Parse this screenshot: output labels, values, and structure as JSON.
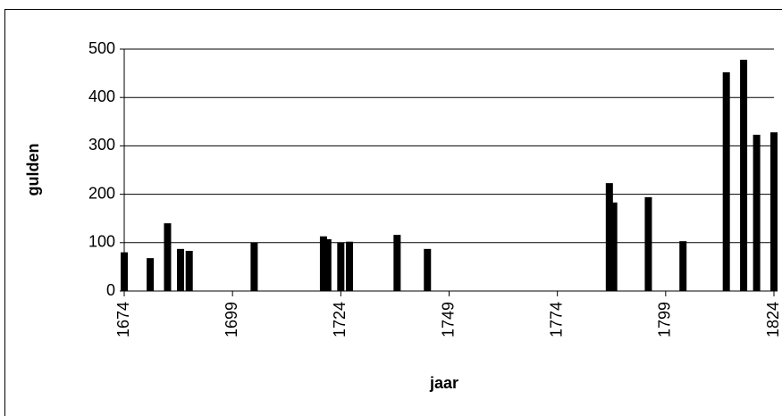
{
  "chart_data": {
    "type": "bar",
    "x": [
      1674,
      1680,
      1684,
      1687,
      1689,
      1704,
      1720,
      1721,
      1724,
      1726,
      1737,
      1744,
      1786,
      1787,
      1795,
      1803,
      1813,
      1817,
      1820,
      1824
    ],
    "values": [
      80,
      68,
      140,
      87,
      83,
      100,
      113,
      107,
      100,
      102,
      116,
      87,
      223,
      183,
      194,
      103,
      452,
      478,
      323,
      328
    ],
    "color": "#000000",
    "xlim": [
      1674,
      1824
    ],
    "xticks": [
      1674,
      1699,
      1724,
      1749,
      1774,
      1799,
      1824
    ],
    "ylim": [
      0,
      500
    ],
    "yticks": [
      0,
      100,
      200,
      300,
      400,
      500
    ],
    "xlabel": "jaar",
    "ylabel": "gulden",
    "grid": true
  }
}
